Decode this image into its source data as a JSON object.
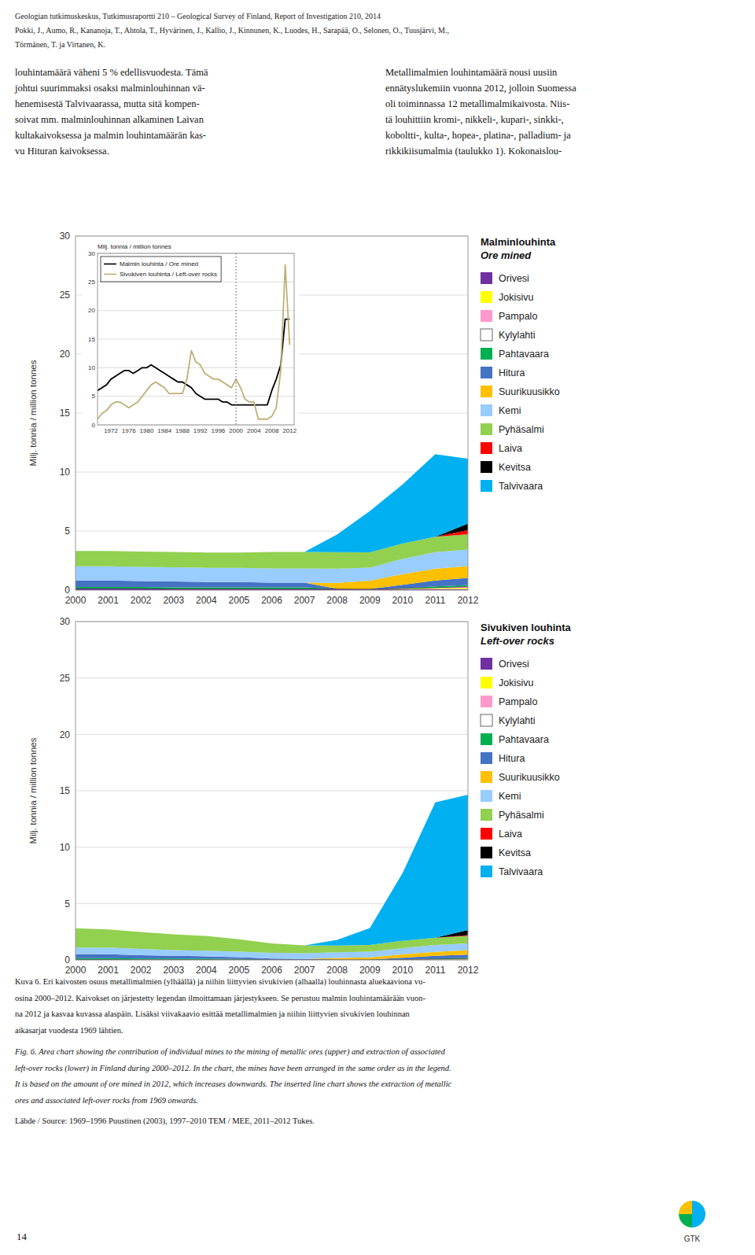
{
  "chart_data": [
    {
      "type": "area",
      "stacked": true,
      "title": "Malminlouhinta",
      "subtitle": "Ore mined",
      "ylabel": "Milj. tonnia / million tonnes",
      "x": [
        2000,
        2001,
        2002,
        2003,
        2004,
        2005,
        2006,
        2007,
        2008,
        2009,
        2010,
        2011,
        2012
      ],
      "xlim": [
        2000,
        2012
      ],
      "xticks": [
        2000,
        2001,
        2002,
        2003,
        2004,
        2005,
        2006,
        2007,
        2008,
        2009,
        2010,
        2011,
        2012
      ],
      "ylim": [
        0,
        30
      ],
      "yticks": [
        0,
        5,
        10,
        15,
        20,
        25,
        30
      ],
      "grid": true,
      "legend": "right",
      "series": [
        {
          "name": "Orivesi",
          "color": "#7030a0",
          "values": [
            0.15,
            0.15,
            0.15,
            0.12,
            0.12,
            0.12,
            0.12,
            0.12,
            0.12,
            0.1,
            0.1,
            0.1,
            0.08
          ]
        },
        {
          "name": "Jokisivu",
          "color": "#ffff00",
          "values": [
            0.0,
            0.0,
            0.0,
            0.0,
            0.0,
            0.0,
            0.0,
            0.0,
            0.0,
            0.0,
            0.05,
            0.07,
            0.1
          ]
        },
        {
          "name": "Pampalo",
          "color": "#ff99cc",
          "values": [
            0.0,
            0.0,
            0.0,
            0.0,
            0.0,
            0.0,
            0.0,
            0.0,
            0.0,
            0.0,
            0.0,
            0.05,
            0.1
          ]
        },
        {
          "name": "Kylylahti",
          "color": "#ffffff",
          "values": [
            0.0,
            0.0,
            0.0,
            0.0,
            0.0,
            0.0,
            0.0,
            0.0,
            0.0,
            0.0,
            0.0,
            0.0,
            0.05
          ]
        },
        {
          "name": "Pahtavaara",
          "color": "#00b050",
          "values": [
            0.12,
            0.12,
            0.12,
            0.12,
            0.12,
            0.12,
            0.12,
            0.12,
            0.0,
            0.0,
            0.0,
            0.1,
            0.1
          ]
        },
        {
          "name": "Hitura",
          "color": "#4472c4",
          "values": [
            0.55,
            0.55,
            0.5,
            0.5,
            0.45,
            0.45,
            0.4,
            0.4,
            0.0,
            0.0,
            0.3,
            0.5,
            0.6
          ]
        },
        {
          "name": "Suurikuusikko",
          "color": "#ffc000",
          "values": [
            0.0,
            0.0,
            0.0,
            0.0,
            0.0,
            0.0,
            0.0,
            0.0,
            0.5,
            0.7,
            0.9,
            1.0,
            1.0
          ]
        },
        {
          "name": "Kemi",
          "color": "#99ccff",
          "values": [
            1.2,
            1.2,
            1.2,
            1.2,
            1.2,
            1.2,
            1.2,
            1.2,
            1.2,
            1.1,
            1.3,
            1.4,
            1.4
          ]
        },
        {
          "name": "Pyhäsalmi",
          "color": "#92d050",
          "values": [
            1.3,
            1.3,
            1.3,
            1.3,
            1.3,
            1.3,
            1.4,
            1.4,
            1.4,
            1.3,
            1.3,
            1.3,
            1.3
          ]
        },
        {
          "name": "Laiva",
          "color": "#ff0000",
          "values": [
            0.0,
            0.0,
            0.0,
            0.0,
            0.0,
            0.0,
            0.0,
            0.0,
            0.0,
            0.0,
            0.0,
            0.0,
            0.35
          ]
        },
        {
          "name": "Kevitsa",
          "color": "#000000",
          "values": [
            0.0,
            0.0,
            0.0,
            0.0,
            0.0,
            0.0,
            0.0,
            0.0,
            0.0,
            0.0,
            0.0,
            0.0,
            0.55
          ]
        },
        {
          "name": "Talvivaara",
          "color": "#00b0f0",
          "values": [
            0.0,
            0.0,
            0.0,
            0.0,
            0.0,
            0.0,
            0.0,
            0.0,
            1.5,
            3.5,
            5.0,
            7.0,
            5.5
          ]
        }
      ]
    },
    {
      "type": "line",
      "title": "Milj. tonnia / million tonnes",
      "x": [
        1969,
        1970,
        1971,
        1972,
        1973,
        1974,
        1975,
        1976,
        1977,
        1978,
        1979,
        1980,
        1981,
        1982,
        1983,
        1984,
        1985,
        1986,
        1987,
        1988,
        1989,
        1990,
        1991,
        1992,
        1993,
        1994,
        1995,
        1996,
        1997,
        1998,
        1999,
        2000,
        2001,
        2002,
        2003,
        2004,
        2005,
        2006,
        2007,
        2008,
        2009,
        2010,
        2011,
        2012
      ],
      "xlim": [
        1969,
        2013
      ],
      "xticks": [
        1972,
        1976,
        1980,
        1984,
        1988,
        1992,
        1996,
        2000,
        2004,
        2008,
        2012
      ],
      "ylim": [
        0,
        30
      ],
      "yticks": [
        0,
        5,
        10,
        15,
        20,
        25,
        30
      ],
      "grid": true,
      "legend": "upper left",
      "annotations": [
        {
          "type": "vline",
          "x": 2000,
          "line_style": "dotted"
        }
      ],
      "series": [
        {
          "name": "Malmin louhinta / Ore mined",
          "color": "#000000",
          "values": [
            6.0,
            6.5,
            7.0,
            8.0,
            8.5,
            9.0,
            9.5,
            9.5,
            9.0,
            9.5,
            10.0,
            10.0,
            10.5,
            10.0,
            9.5,
            9.0,
            8.5,
            8.0,
            7.5,
            7.5,
            7.0,
            6.5,
            5.5,
            5.0,
            4.5,
            4.5,
            4.5,
            4.5,
            4.0,
            4.0,
            3.5,
            3.5,
            3.5,
            3.5,
            3.5,
            3.5,
            3.5,
            3.5,
            3.5,
            6.0,
            8.0,
            10.5,
            18.5,
            18.5
          ]
        },
        {
          "name": "Sivukiven louhinta / Left-over rocks",
          "color": "#bdb076",
          "values": [
            1.0,
            2.0,
            2.5,
            3.5,
            4.0,
            4.0,
            3.5,
            3.0,
            3.5,
            4.0,
            5.0,
            6.0,
            7.0,
            7.5,
            7.0,
            6.5,
            5.5,
            5.5,
            5.5,
            5.5,
            8.0,
            13.0,
            11.0,
            10.5,
            9.0,
            8.5,
            8.0,
            8.0,
            7.5,
            7.0,
            6.5,
            8.0,
            6.5,
            4.5,
            4.0,
            4.0,
            1.0,
            1.0,
            1.0,
            1.5,
            3.0,
            9.5,
            28.0,
            14.0
          ]
        }
      ]
    },
    {
      "type": "area",
      "stacked": true,
      "title": "Sivukiven louhinta",
      "subtitle": "Left-over rocks",
      "ylabel": "Milj. tonnia / million tonnes",
      "x": [
        2000,
        2001,
        2002,
        2003,
        2004,
        2005,
        2006,
        2007,
        2008,
        2009,
        2010,
        2011,
        2012
      ],
      "xlim": [
        2000,
        2012
      ],
      "xticks": [
        2000,
        2001,
        2002,
        2003,
        2004,
        2005,
        2006,
        2007,
        2008,
        2009,
        2010,
        2011,
        2012
      ],
      "ylim": [
        0,
        30
      ],
      "yticks": [
        0,
        5,
        10,
        15,
        20,
        25,
        30
      ],
      "grid": true,
      "legend": "right",
      "series": [
        {
          "name": "Orivesi",
          "color": "#7030a0",
          "values": [
            0.05,
            0.05,
            0.04,
            0.04,
            0.04,
            0.04,
            0.04,
            0.04,
            0.03,
            0.03,
            0.03,
            0.03,
            0.03
          ]
        },
        {
          "name": "Jokisivu",
          "color": "#ffff00",
          "values": [
            0.0,
            0.0,
            0.0,
            0.0,
            0.0,
            0.0,
            0.0,
            0.0,
            0.0,
            0.0,
            0.02,
            0.03,
            0.04
          ]
        },
        {
          "name": "Pampalo",
          "color": "#ff99cc",
          "values": [
            0.0,
            0.0,
            0.0,
            0.0,
            0.0,
            0.0,
            0.0,
            0.0,
            0.0,
            0.0,
            0.0,
            0.02,
            0.04
          ]
        },
        {
          "name": "Kylylahti",
          "color": "#ffffff",
          "values": [
            0.0,
            0.0,
            0.0,
            0.0,
            0.0,
            0.0,
            0.0,
            0.0,
            0.0,
            0.0,
            0.0,
            0.0,
            0.02
          ]
        },
        {
          "name": "Pahtavaara",
          "color": "#00b050",
          "values": [
            0.1,
            0.1,
            0.08,
            0.08,
            0.08,
            0.05,
            0.0,
            0.0,
            0.0,
            0.0,
            0.0,
            0.04,
            0.04
          ]
        },
        {
          "name": "Hitura",
          "color": "#4472c4",
          "values": [
            0.35,
            0.35,
            0.3,
            0.25,
            0.2,
            0.15,
            0.08,
            0.05,
            0.0,
            0.0,
            0.15,
            0.25,
            0.3
          ]
        },
        {
          "name": "Suurikuusikko",
          "color": "#ffc000",
          "values": [
            0.0,
            0.0,
            0.0,
            0.0,
            0.0,
            0.0,
            0.0,
            0.0,
            0.15,
            0.2,
            0.3,
            0.35,
            0.4
          ]
        },
        {
          "name": "Kemi",
          "color": "#99ccff",
          "values": [
            0.6,
            0.6,
            0.55,
            0.5,
            0.5,
            0.5,
            0.5,
            0.5,
            0.5,
            0.5,
            0.55,
            0.6,
            0.6
          ]
        },
        {
          "name": "Pyhäsalmi",
          "color": "#92d050",
          "values": [
            1.7,
            1.6,
            1.5,
            1.4,
            1.3,
            1.1,
            0.85,
            0.7,
            0.6,
            0.6,
            0.65,
            0.65,
            0.65
          ]
        },
        {
          "name": "Laiva",
          "color": "#ff0000",
          "values": [
            0.0,
            0.0,
            0.0,
            0.0,
            0.0,
            0.0,
            0.0,
            0.0,
            0.0,
            0.0,
            0.0,
            0.0,
            0.08
          ]
        },
        {
          "name": "Kevitsa",
          "color": "#000000",
          "values": [
            0.0,
            0.0,
            0.0,
            0.0,
            0.0,
            0.0,
            0.0,
            0.0,
            0.0,
            0.0,
            0.0,
            0.0,
            0.45
          ]
        },
        {
          "name": "Talvivaara",
          "color": "#00b0f0",
          "values": [
            0.0,
            0.0,
            0.0,
            0.0,
            0.0,
            0.0,
            0.0,
            0.0,
            0.5,
            1.5,
            6.0,
            12.0,
            12.0
          ]
        }
      ]
    }
  ],
  "page": {
    "header": [
      "Geologian tutkimuskeskus, Tutkimusraportti 210 – Geological Survey of Finland, Report of Investigation 210, 2014",
      "Pokki, J., Aumo, R., Kananoja, T., Ahtola, T., Hyvärinen, J., Kallio, J., Kinnunen, K., Luodes, H., Sarapää, O., Selonen, O., Tuusjärvi, M.,",
      "Törmänen, T. ja Virtanen, K."
    ],
    "body_left": [
      "louhintamäärä väheni 5 % edellisvuodesta. Tämä",
      "johtui suurimmaksi osaksi malminlouhinnan vä-",
      "henemisestä Talvivaarassa, mutta sitä kompen-",
      "soivat mm. malminlouhinnan alkaminen Laivan",
      "kultakaivoksessa ja malmin louhintamäärän kas-",
      "vu Hituran kaivoksessa."
    ],
    "body_right": [
      "Metallimalmien louhintamäärä nousi uusiin",
      "ennätyslukemiin vuonna 2012, jolloin Suomessa",
      "oli toiminnassa 12 metallimalmikaivosta. Niis-",
      "tä louhittiin kromi-, nikkeli-, kupari-, sinkki-,",
      "koboltti-, kulta-, hopea-, platina-, palladium- ja",
      "rikkikiisumalmia (taulukko 1). Kokonaislou-"
    ],
    "caption": [
      "Kuva 6. Eri kaivosten osuus metallimalmien (ylhäällä) ja niihin liittyvien sivukivien (alhaalla) louhinnasta aluekaaviona vu-",
      "osina 2000–2012. Kaivokset on järjestetty legendan ilmoittamaan järjestykseen. Se perustuu malmin louhintamäärään vuon-",
      "na 2012 ja kasvaa kuvassa alaspäin. Lisäksi viivakaavio esittää metallimalmien ja niihin liittyvien sivukivien louhinnan",
      "aikasarjat vuodesta 1969 lähtien."
    ],
    "caption_en": [
      "Fig. 6. Area chart showing the contribution of individual mines to the mining of metallic ores (upper) and extraction of associated",
      "left-over rocks (lower) in Finland during 2000–2012. In the chart, the mines have been arranged in the same order as in the legend.",
      "It is based on the amount of ore mined in 2012, which increases downwards. The inserted line chart shows the extraction of metallic",
      "ores and associated left-over rocks from 1969 onwards."
    ],
    "source": "Lähde / Source: 1969–1996 Puustinen (2003), 1997–2010 TEM / MEE, 2011–2012 Tukes.",
    "page_number": "14",
    "logo": {
      "text": "GTK",
      "colors": [
        "#00b0f0",
        "#ffc000",
        "#00b050"
      ]
    }
  }
}
